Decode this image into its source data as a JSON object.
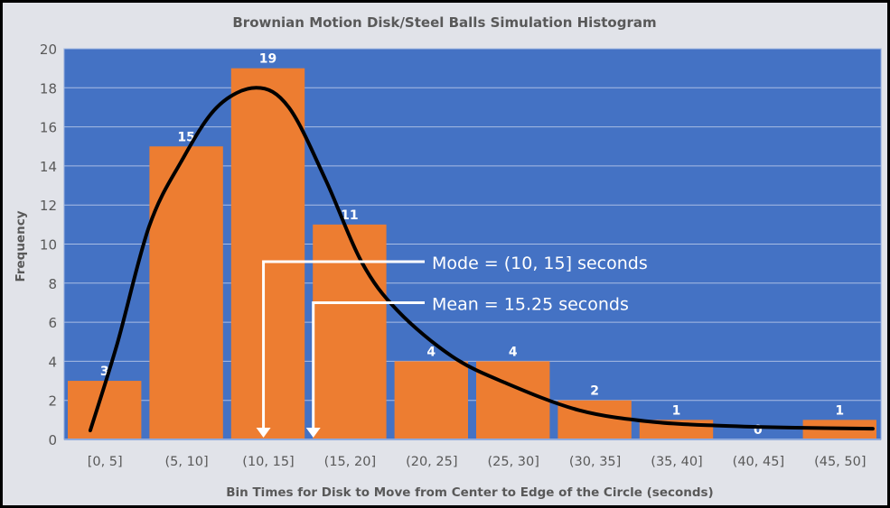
{
  "chart_data": {
    "type": "bar",
    "title": "Brownian Motion Disk/Steel Balls Simulation Histogram",
    "xlabel": "Bin Times for Disk to Move from Center to Edge of the Circle (seconds)",
    "ylabel": "Frequency",
    "categories": [
      "[0, 5]",
      "(5, 10]",
      "(10, 15]",
      "(15, 20]",
      "(20, 25]",
      "(25, 30]",
      "(30, 35]",
      "(35, 40]",
      "(40, 45]",
      "(45, 50]"
    ],
    "values": [
      3,
      15,
      19,
      11,
      4,
      4,
      2,
      1,
      0,
      1
    ],
    "ylim": [
      0,
      20
    ],
    "yticks": [
      0,
      2,
      4,
      6,
      8,
      10,
      12,
      14,
      16,
      18,
      20
    ],
    "grid": true,
    "curve": {
      "x_seconds": [
        1.6,
        3.25,
        5.2,
        7.15,
        9.35,
        11.75,
        13.75,
        16,
        18.2,
        20.4,
        23.75,
        27,
        31.5,
        36,
        40.3,
        44.75,
        49.5
      ],
      "y": [
        0.46,
        4.9,
        10.9,
        14.2,
        17,
        18,
        17,
        13.3,
        9.1,
        6.6,
        4.25,
        2.9,
        1.5,
        0.9,
        0.7,
        0.6,
        0.55
      ]
    },
    "annotations": [
      {
        "text": "Mode = (10, 15] seconds",
        "y": 9.1,
        "x_seconds": 12.2
      },
      {
        "text": "Mean = 15.25 seconds",
        "y": 7.0,
        "x_seconds": 15.25
      }
    ],
    "colors": {
      "background": "#e1e3e9",
      "plot": "#4472c4",
      "bar": "#ed7d31",
      "curve": "#000000",
      "grid": "#a9bde3",
      "annotation": "#ffffff",
      "text": "#595959"
    }
  }
}
